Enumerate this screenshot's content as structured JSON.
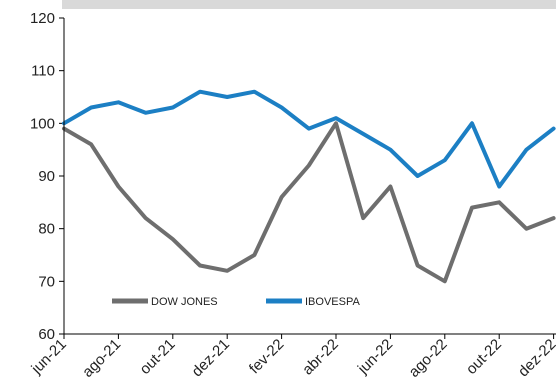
{
  "chart_data": {
    "type": "line",
    "title": "",
    "xlabel": "",
    "ylabel": "",
    "ylim": [
      60,
      120
    ],
    "yticks": [
      60,
      70,
      80,
      90,
      100,
      110,
      120
    ],
    "xticks": [
      "jun-21",
      "ago-21",
      "out-21",
      "dez-21",
      "fev-22",
      "abr-22",
      "jun-22",
      "ago-22",
      "out-22",
      "dez-22"
    ],
    "grid": false,
    "legend_position": "bottom-left",
    "colors": {
      "DOW JONES": "#6e6e6e",
      "IBOVESPA": "#1c7fc4",
      "top_band": "#d9d9d9"
    },
    "x": [
      "2021-06",
      "2021-07",
      "2021-08",
      "2021-09",
      "2021-10",
      "2021-11",
      "2021-12",
      "2022-01",
      "2022-02",
      "2022-03",
      "2022-04",
      "2022-05",
      "2022-06",
      "2022-07",
      "2022-08",
      "2022-09",
      "2022-10",
      "2022-11",
      "2022-12"
    ],
    "series": [
      {
        "name": "DOW JONES",
        "values": [
          99,
          96,
          88,
          82,
          78,
          73,
          72,
          75,
          86,
          92,
          100,
          82,
          88,
          73,
          70,
          84,
          85,
          80,
          82
        ]
      },
      {
        "name": "IBOVESPA",
        "values": [
          100,
          103,
          104,
          102,
          103,
          106,
          105,
          106,
          103,
          99,
          101,
          98,
          95,
          90,
          93,
          100,
          88,
          95,
          99
        ]
      }
    ]
  }
}
